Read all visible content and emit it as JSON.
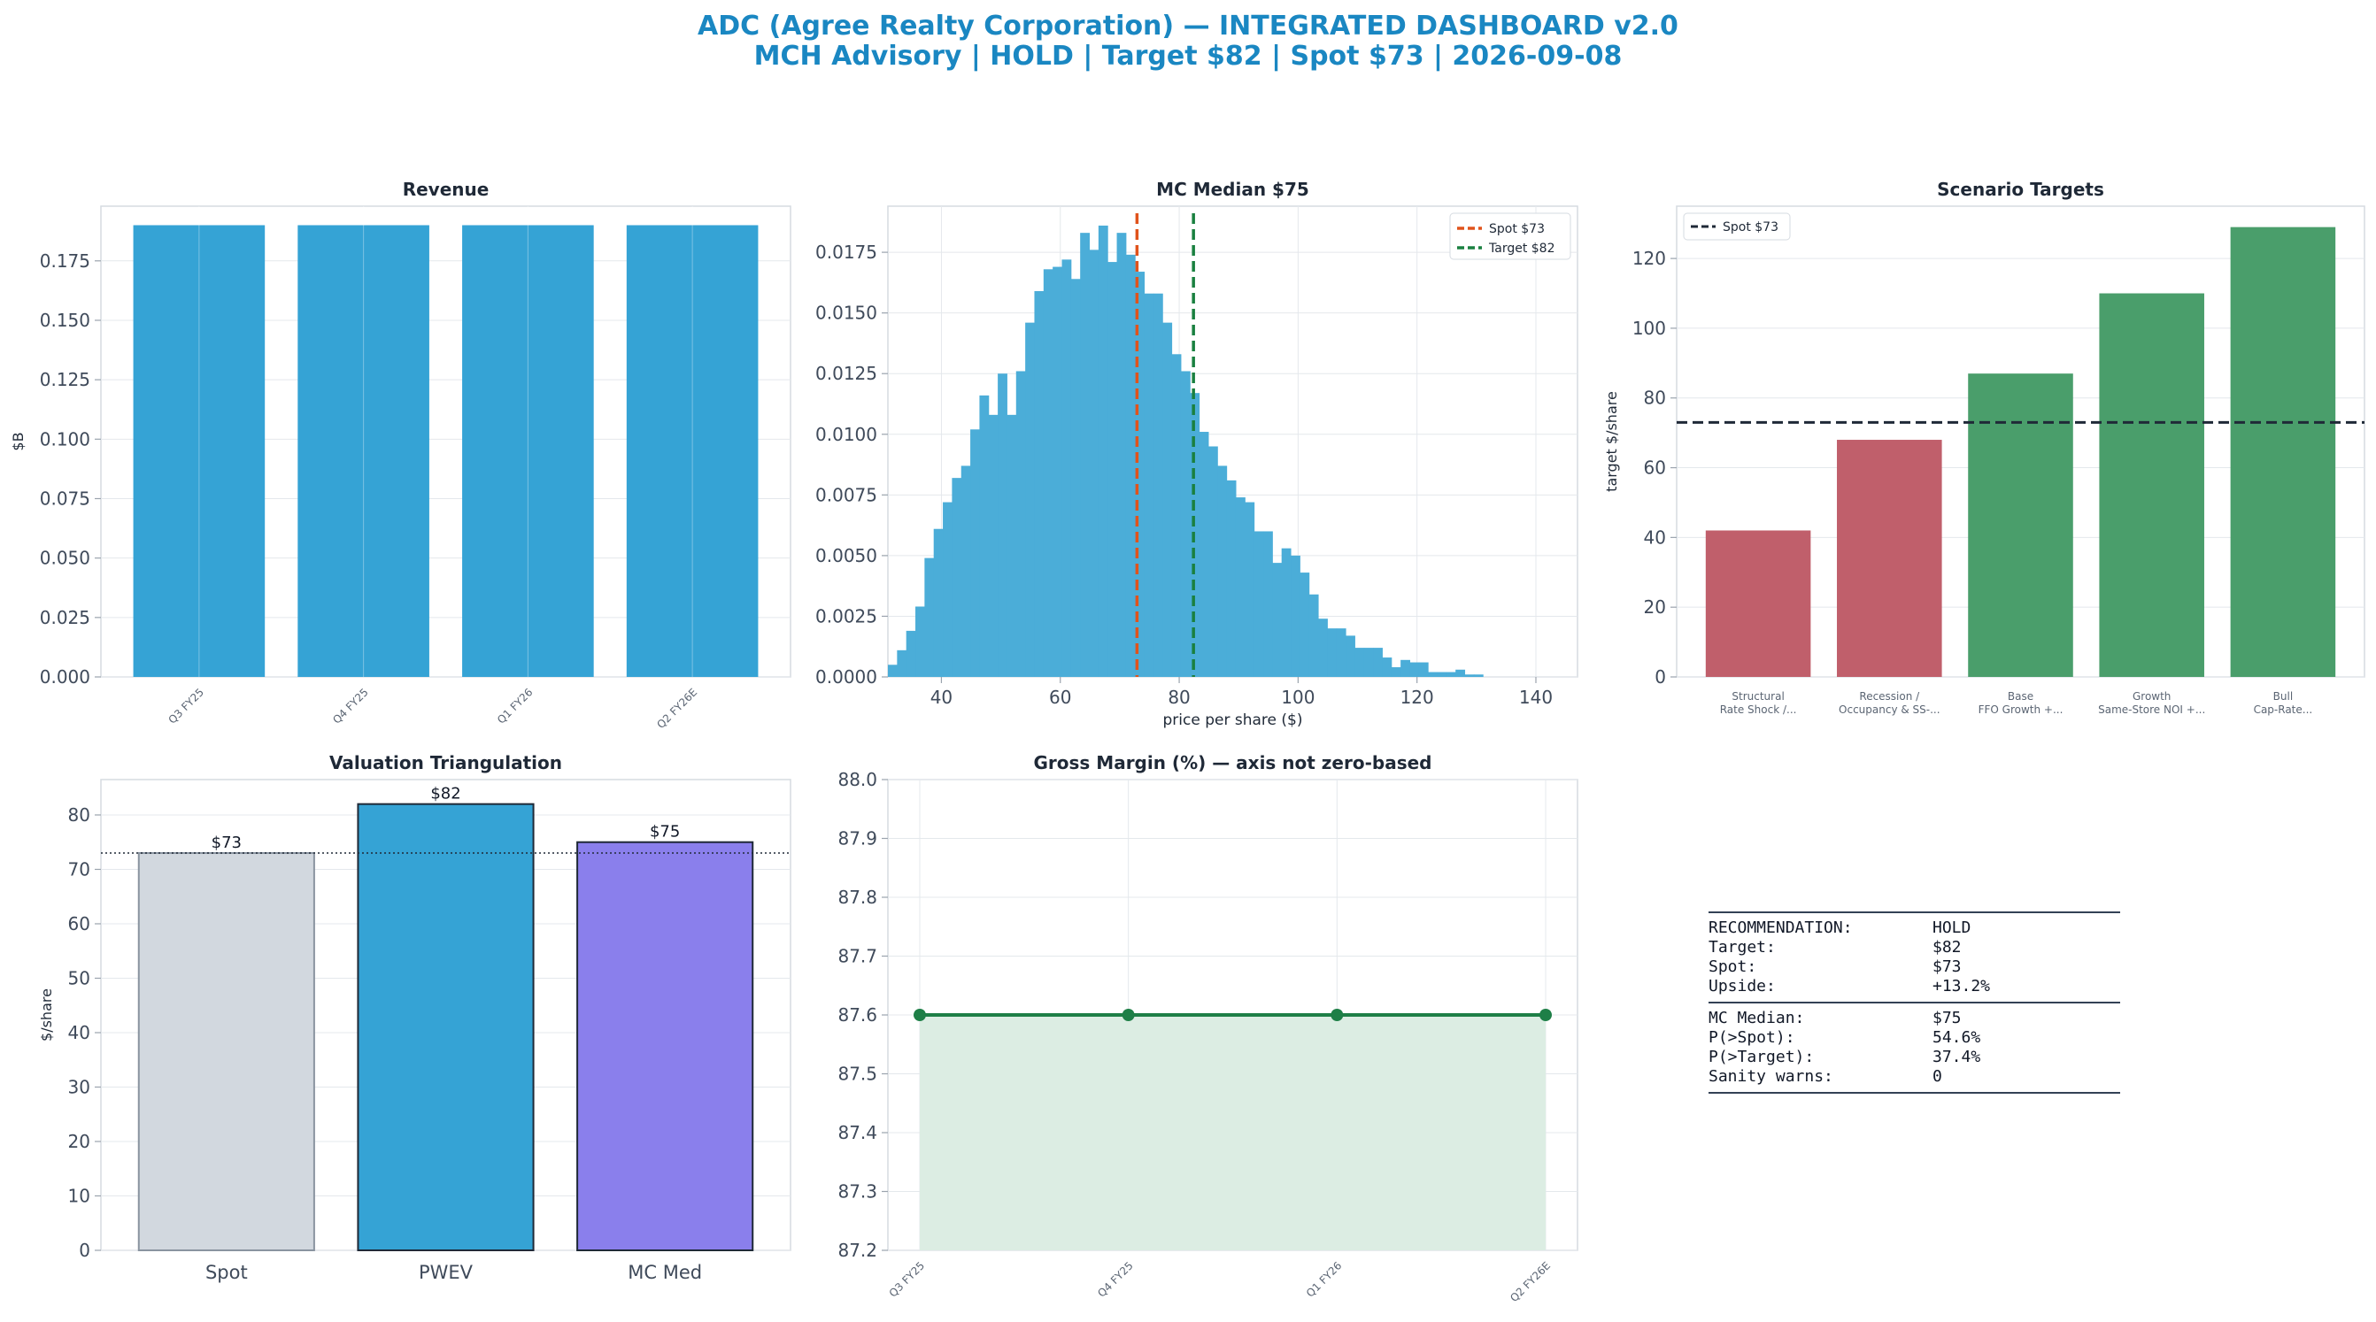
{
  "page": {
    "title_line1": "ADC (Agree Realty Corporation) — INTEGRATED DASHBOARD v2.0",
    "title_line2": "MCH Advisory | HOLD | Target $82 | Spot $73 | 2026-09-08"
  },
  "colors": {
    "blue": "#35a3d5",
    "histogram": "#4badd8",
    "spot_line": "#e0531b",
    "target_line": "#1a8040",
    "red_bar": "#c05f6b",
    "green_bar": "#4a9e6b",
    "grey_bar": "#d2d8df",
    "purple_bar": "#8a7fec",
    "margin_line": "#1e7f47",
    "margin_fill": "#dcede3",
    "title_text": "#1a87c2"
  },
  "chart_data": [
    {
      "id": "revenue",
      "type": "bar",
      "title": "Revenue",
      "ylabel": "$B",
      "xlabel": "",
      "categories": [
        "Q3 FY25",
        "Q4 FY25",
        "Q1 FY26",
        "Q2 FY26E"
      ],
      "values": [
        0.19,
        0.19,
        0.19,
        0.19
      ],
      "ylim": [
        0,
        0.198
      ],
      "yticks": [
        0,
        0.025,
        0.05,
        0.075,
        0.1,
        0.125,
        0.15,
        0.175
      ],
      "ytick_labels": [
        "0.000",
        "0.025",
        "0.050",
        "0.075",
        "0.100",
        "0.125",
        "0.150",
        "0.175"
      ],
      "grid": true
    },
    {
      "id": "mc_hist",
      "type": "bar",
      "subtype": "histogram",
      "title": "MC Median $75",
      "xlabel": "price per share ($)",
      "ylabel": "",
      "xlim": [
        31,
        147
      ],
      "ylim": [
        0,
        0.0194
      ],
      "bin_start": 31,
      "bin_width": 1.54,
      "values": [
        0.0005,
        0.0011,
        0.0019,
        0.0029,
        0.0049,
        0.0061,
        0.0072,
        0.0082,
        0.0087,
        0.0102,
        0.0116,
        0.0108,
        0.0125,
        0.0108,
        0.0126,
        0.0146,
        0.0159,
        0.0168,
        0.0169,
        0.0172,
        0.0164,
        0.0183,
        0.0176,
        0.0186,
        0.0171,
        0.0183,
        0.0174,
        0.0167,
        0.0158,
        0.0158,
        0.0146,
        0.0133,
        0.0126,
        0.0117,
        0.0101,
        0.0095,
        0.0087,
        0.0081,
        0.0074,
        0.0072,
        0.006,
        0.006,
        0.0047,
        0.0053,
        0.005,
        0.0043,
        0.0034,
        0.0024,
        0.002,
        0.002,
        0.0017,
        0.0012,
        0.0012,
        0.0012,
        0.0008,
        0.0004,
        0.0007,
        0.0006,
        0.0006,
        0.0002,
        0.0002,
        0.0002,
        0.0003,
        0.0001,
        0.0001
      ],
      "xticks": [
        40,
        60,
        80,
        100,
        120,
        140
      ],
      "yticks": [
        0,
        0.0025,
        0.005,
        0.0075,
        0.01,
        0.0125,
        0.015,
        0.0175
      ],
      "ytick_labels": [
        "0.0000",
        "0.0025",
        "0.0050",
        "0.0075",
        "0.0100",
        "0.0125",
        "0.0150",
        "0.0175"
      ],
      "vlines": [
        {
          "name": "Spot $73",
          "x": 72.9
        },
        {
          "name": "Target $82",
          "x": 82.4
        }
      ],
      "legend": "top-right",
      "grid": true
    },
    {
      "id": "scenarios",
      "type": "bar",
      "title": "Scenario Targets",
      "ylabel": "target $/share",
      "xlabel": "",
      "categories": [
        [
          "Structural",
          "Rate Shock /..."
        ],
        [
          "Recession /",
          "Occupancy & SS-..."
        ],
        [
          "Base",
          "FFO Growth +..."
        ],
        [
          "Growth",
          "Same-Store NOI +..."
        ],
        [
          "Bull",
          "Cap-Rate..."
        ]
      ],
      "values": [
        42,
        68,
        87,
        110,
        129
      ],
      "ylim": [
        0,
        135
      ],
      "yticks": [
        0,
        20,
        40,
        60,
        80,
        100,
        120
      ],
      "hline": {
        "name": "Spot $73",
        "y": 73
      },
      "legend": "top-left",
      "grid": true
    },
    {
      "id": "triangulation",
      "type": "bar",
      "title": "Valuation Triangulation",
      "ylabel": "$/share",
      "xlabel": "",
      "categories": [
        "Spot",
        "PWEV",
        "MC Med"
      ],
      "values": [
        73,
        82,
        75
      ],
      "data_labels": [
        "$73",
        "$82",
        "$75"
      ],
      "ylim": [
        0,
        86.5
      ],
      "yticks": [
        0,
        10,
        20,
        30,
        40,
        50,
        60,
        70,
        80
      ],
      "hline_y": 73,
      "grid": true
    },
    {
      "id": "gross_margin",
      "type": "area",
      "title": "Gross Margin (%) — axis not zero-based",
      "xlabel": "",
      "ylabel": "",
      "categories": [
        "Q3 FY25",
        "Q4 FY25",
        "Q1 FY26",
        "Q2 FY26E"
      ],
      "values": [
        87.6,
        87.6,
        87.6,
        87.6
      ],
      "ylim": [
        87.2,
        88.0
      ],
      "yticks": [
        87.2,
        87.3,
        87.4,
        87.5,
        87.6,
        87.7,
        87.8,
        87.9,
        88.0
      ],
      "ytick_labels": [
        "87.2",
        "87.3",
        "87.4",
        "87.5",
        "87.6",
        "87.7",
        "87.8",
        "87.9",
        "88.0"
      ],
      "grid": true
    }
  ],
  "summary": {
    "group1": [
      {
        "key": "RECOMMENDATION:",
        "value": "HOLD"
      },
      {
        "key": "Target:",
        "value": "$82"
      },
      {
        "key": "Spot:",
        "value": "$73"
      },
      {
        "key": "Upside:",
        "value": "+13.2%"
      }
    ],
    "group2": [
      {
        "key": "MC Median:",
        "value": "$75"
      },
      {
        "key": "P(>Spot):",
        "value": "54.6%"
      },
      {
        "key": "P(>Target):",
        "value": "37.4%"
      },
      {
        "key": "Sanity warns:",
        "value": "0"
      }
    ]
  }
}
